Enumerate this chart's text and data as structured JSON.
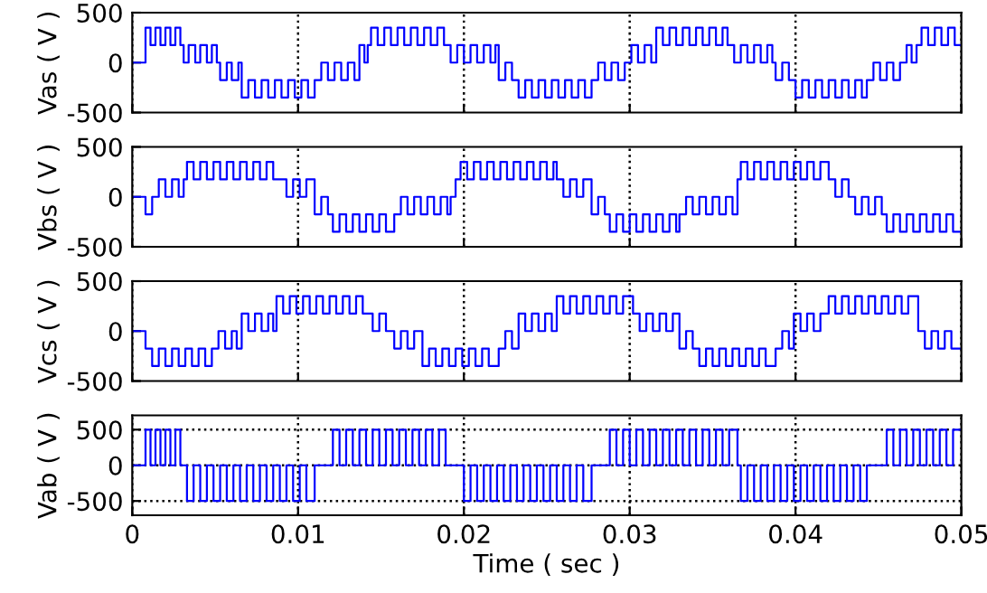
{
  "chart_data": [
    {
      "type": "step",
      "ylabel": "Vas ( V )",
      "xlim": [
        0,
        0.05
      ],
      "xticks": [
        0,
        0.01,
        0.02,
        0.03,
        0.04,
        0.05
      ],
      "ylim": [
        -500,
        500
      ],
      "yticks": [
        -500,
        0,
        500
      ],
      "grid": "x",
      "tick_labels": "y",
      "series": [
        {
          "color": "#0000ff",
          "x": [
            0,
            0.0008,
            0.0011,
            0.0014,
            0.0017,
            0.002,
            0.0023,
            0.0026,
            0.0029,
            0.0031,
            0.0034,
            0.0038,
            0.0041,
            0.0045,
            0.0048,
            0.0051,
            0.0053,
            0.0057,
            0.006,
            0.0064,
            0.0066,
            0.007,
            0.0074,
            0.0078,
            0.0082,
            0.0086,
            0.009,
            0.0094,
            0.0098,
            0.0102,
            0.0106,
            0.011,
            0.0114,
            0.0118,
            0.0122,
            0.0126,
            0.013,
            0.0134,
            0.0137,
            0.014,
            0.0142,
            0.0144,
            0.0148,
            0.0152,
            0.0156,
            0.016,
            0.0164,
            0.0168,
            0.0172,
            0.0176,
            0.018,
            0.0184,
            0.0188,
            0.0192,
            0.0196,
            0.02,
            0.0204,
            0.0208,
            0.0212,
            0.0216,
            0.0219,
            0.0221,
            0.0225,
            0.0229,
            0.0233,
            0.0237,
            0.0241,
            0.0245,
            0.0249,
            0.0253,
            0.0257,
            0.0261,
            0.0265,
            0.0269,
            0.0273,
            0.0277,
            0.0281,
            0.0285,
            0.0289,
            0.0293,
            0.0297,
            0.0301,
            0.0305,
            0.0309,
            0.0313,
            0.0316,
            0.032,
            0.0324,
            0.0328,
            0.0332,
            0.0336,
            0.034,
            0.0344,
            0.0348,
            0.0352,
            0.0356,
            0.0359,
            0.0363,
            0.0367,
            0.0371,
            0.0375,
            0.0379,
            0.0383,
            0.0386,
            0.0388,
            0.0392,
            0.0396,
            0.04,
            0.0404,
            0.0408,
            0.0412,
            0.0416,
            0.042,
            0.0424,
            0.0428,
            0.0432,
            0.0436,
            0.044,
            0.0443,
            0.0447,
            0.0451,
            0.0455,
            0.0459,
            0.0463,
            0.0467,
            0.047,
            0.0473,
            0.0476,
            0.048,
            0.0484,
            0.0488,
            0.0492,
            0.0496,
            0.05
          ],
          "values": [
            0,
            350,
            175,
            350,
            175,
            350,
            175,
            350,
            175,
            0,
            175,
            0,
            175,
            0,
            175,
            0,
            -175,
            0,
            -175,
            0,
            -350,
            -175,
            -350,
            -175,
            -350,
            -175,
            -350,
            -175,
            -350,
            -175,
            -350,
            -175,
            0,
            -175,
            0,
            -175,
            0,
            -175,
            175,
            0,
            175,
            350,
            175,
            350,
            175,
            350,
            175,
            350,
            175,
            350,
            175,
            350,
            175,
            0,
            175,
            0,
            175,
            0,
            175,
            0,
            175,
            -175,
            0,
            -175,
            -350,
            -175,
            -350,
            -175,
            -350,
            -175,
            -350,
            -175,
            -350,
            -175,
            -350,
            -175,
            0,
            -175,
            0,
            -175,
            0,
            175,
            0,
            175,
            0,
            350,
            175,
            350,
            175,
            350,
            175,
            350,
            175,
            350,
            175,
            350,
            175,
            0,
            175,
            0,
            175,
            0,
            175,
            0,
            -175,
            0,
            -175,
            -350,
            -175,
            -350,
            -175,
            -350,
            -175,
            -350,
            -175,
            -350,
            -175,
            -350,
            -175,
            0,
            -175,
            0,
            -175,
            0,
            175,
            0,
            175,
            350,
            175,
            350,
            175,
            350,
            175,
            175
          ]
        }
      ]
    },
    {
      "type": "step",
      "ylabel": "Vbs ( V )",
      "xlim": [
        0,
        0.05
      ],
      "xticks": [
        0,
        0.01,
        0.02,
        0.03,
        0.04,
        0.05
      ],
      "ylim": [
        -500,
        500
      ],
      "yticks": [
        -500,
        0,
        500
      ],
      "grid": "x",
      "tick_labels": "y",
      "series": [
        {
          "color": "#0000ff",
          "x": [
            0,
            0.0008,
            0.0012,
            0.0016,
            0.002,
            0.0024,
            0.0028,
            0.0031,
            0.0033,
            0.0037,
            0.0041,
            0.0045,
            0.0049,
            0.0053,
            0.0057,
            0.0061,
            0.0065,
            0.0069,
            0.0073,
            0.0077,
            0.0081,
            0.0085,
            0.0089,
            0.0093,
            0.0097,
            0.0101,
            0.0105,
            0.011,
            0.0114,
            0.0118,
            0.0121,
            0.0125,
            0.0129,
            0.0133,
            0.0137,
            0.0141,
            0.0145,
            0.0149,
            0.0153,
            0.0158,
            0.0162,
            0.0166,
            0.017,
            0.0174,
            0.0178,
            0.0182,
            0.0186,
            0.019,
            0.0192,
            0.0195,
            0.0198,
            0.0202,
            0.0206,
            0.021,
            0.0214,
            0.0218,
            0.0222,
            0.0226,
            0.023,
            0.0234,
            0.0238,
            0.0242,
            0.0246,
            0.025,
            0.0254,
            0.0256,
            0.026,
            0.0264,
            0.0268,
            0.0272,
            0.0277,
            0.0281,
            0.0285,
            0.0288,
            0.0292,
            0.0296,
            0.03,
            0.0304,
            0.0308,
            0.0312,
            0.0316,
            0.032,
            0.0324,
            0.0328,
            0.033,
            0.0334,
            0.0338,
            0.0342,
            0.0346,
            0.035,
            0.0354,
            0.0358,
            0.0362,
            0.0365,
            0.0367,
            0.0371,
            0.0375,
            0.0379,
            0.0383,
            0.0387,
            0.0391,
            0.0395,
            0.0399,
            0.0403,
            0.0407,
            0.0411,
            0.0415,
            0.042,
            0.0424,
            0.0428,
            0.0432,
            0.0436,
            0.044,
            0.0444,
            0.0448,
            0.0452,
            0.0455,
            0.0459,
            0.0463,
            0.0467,
            0.0471,
            0.0475,
            0.0479,
            0.0483,
            0.0487,
            0.0491,
            0.0495,
            0.05
          ],
          "values": [
            0,
            -175,
            0,
            175,
            0,
            175,
            0,
            175,
            350,
            175,
            350,
            175,
            350,
            175,
            350,
            175,
            350,
            175,
            350,
            175,
            350,
            175,
            175,
            0,
            175,
            0,
            175,
            -175,
            0,
            -175,
            -350,
            -175,
            -350,
            -175,
            -350,
            -175,
            -350,
            -175,
            -350,
            -175,
            0,
            -175,
            0,
            -175,
            0,
            -175,
            0,
            -175,
            0,
            175,
            350,
            175,
            350,
            175,
            350,
            175,
            350,
            175,
            350,
            175,
            350,
            175,
            350,
            175,
            350,
            175,
            0,
            175,
            0,
            175,
            -175,
            0,
            -175,
            -350,
            -175,
            -350,
            -175,
            -350,
            -175,
            -350,
            -175,
            -350,
            -175,
            -350,
            -175,
            0,
            -175,
            0,
            -175,
            0,
            -175,
            0,
            -175,
            175,
            350,
            175,
            350,
            175,
            350,
            175,
            350,
            175,
            350,
            175,
            350,
            175,
            350,
            175,
            0,
            175,
            0,
            -175,
            0,
            -175,
            0,
            -175,
            -350,
            -175,
            -350,
            -175,
            -350,
            -175,
            -350,
            -175,
            -350,
            -175,
            -350,
            -350
          ]
        }
      ]
    },
    {
      "type": "step",
      "ylabel": "Vcs ( V )",
      "xlim": [
        0,
        0.05
      ],
      "xticks": [
        0,
        0.01,
        0.02,
        0.03,
        0.04,
        0.05
      ],
      "ylim": [
        -500,
        500
      ],
      "yticks": [
        -500,
        0,
        500
      ],
      "grid": "x",
      "tick_labels": "y",
      "series": [
        {
          "color": "#0000ff",
          "x": [
            0,
            0.0008,
            0.0012,
            0.0016,
            0.002,
            0.0024,
            0.0028,
            0.0032,
            0.0036,
            0.004,
            0.0044,
            0.0048,
            0.0052,
            0.0056,
            0.006,
            0.0063,
            0.0066,
            0.007,
            0.0074,
            0.0078,
            0.0082,
            0.0085,
            0.0087,
            0.0091,
            0.0095,
            0.0099,
            0.0103,
            0.0107,
            0.0111,
            0.0115,
            0.0119,
            0.0123,
            0.0127,
            0.0131,
            0.0135,
            0.0139,
            0.0141,
            0.0145,
            0.0149,
            0.0153,
            0.0158,
            0.0162,
            0.0166,
            0.017,
            0.0175,
            0.0179,
            0.0183,
            0.0187,
            0.0191,
            0.0195,
            0.0199,
            0.0203,
            0.0207,
            0.0211,
            0.0215,
            0.0221,
            0.0225,
            0.0229,
            0.0233,
            0.0237,
            0.0241,
            0.0245,
            0.0249,
            0.0253,
            0.0256,
            0.026,
            0.0264,
            0.0268,
            0.0272,
            0.0276,
            0.028,
            0.0284,
            0.0288,
            0.0292,
            0.0296,
            0.0302,
            0.0306,
            0.031,
            0.0314,
            0.0318,
            0.0322,
            0.0326,
            0.033,
            0.0334,
            0.0338,
            0.0342,
            0.0346,
            0.035,
            0.0354,
            0.0358,
            0.0362,
            0.0366,
            0.037,
            0.0374,
            0.0378,
            0.0382,
            0.0388,
            0.0392,
            0.0396,
            0.0399,
            0.0403,
            0.0407,
            0.0411,
            0.0415,
            0.042,
            0.0424,
            0.0428,
            0.0432,
            0.0436,
            0.044,
            0.0444,
            0.0448,
            0.0452,
            0.0456,
            0.046,
            0.0464,
            0.0468,
            0.0474,
            0.0478,
            0.0482,
            0.0486,
            0.049,
            0.0494,
            0.05
          ],
          "values": [
            0,
            -175,
            -350,
            -175,
            -350,
            -175,
            -350,
            -175,
            -350,
            -175,
            -350,
            -175,
            0,
            -175,
            0,
            -175,
            175,
            0,
            175,
            0,
            175,
            0,
            350,
            175,
            350,
            175,
            350,
            175,
            350,
            175,
            350,
            175,
            350,
            175,
            350,
            175,
            175,
            0,
            175,
            0,
            -175,
            0,
            -175,
            0,
            -350,
            -175,
            -350,
            -175,
            -350,
            -175,
            -350,
            -175,
            -350,
            -175,
            -350,
            -175,
            0,
            -175,
            175,
            0,
            175,
            0,
            175,
            0,
            350,
            175,
            350,
            175,
            350,
            175,
            350,
            175,
            350,
            175,
            350,
            175,
            0,
            175,
            0,
            175,
            0,
            175,
            -175,
            0,
            -175,
            -350,
            -175,
            -350,
            -175,
            -350,
            -175,
            -350,
            -175,
            -350,
            -175,
            -350,
            -175,
            0,
            -175,
            175,
            0,
            175,
            0,
            175,
            350,
            175,
            350,
            175,
            350,
            175,
            350,
            175,
            350,
            175,
            350,
            175,
            350,
            0,
            -175,
            0,
            -175,
            0,
            -175,
            -175
          ]
        }
      ]
    },
    {
      "type": "step",
      "ylabel": "Vab ( V )",
      "xlabel": "Time ( sec )",
      "xlim": [
        0,
        0.05
      ],
      "xticks": [
        0,
        0.01,
        0.02,
        0.03,
        0.04,
        0.05
      ],
      "ylim": [
        -700,
        700
      ],
      "yticks": [
        -500,
        0,
        500
      ],
      "grid": true,
      "series": [
        {
          "color": "#0000ff",
          "x": [
            0,
            0.0008,
            0.0011,
            0.0014,
            0.0017,
            0.002,
            0.0023,
            0.0026,
            0.0029,
            0.0033,
            0.0037,
            0.0041,
            0.0045,
            0.0049,
            0.0053,
            0.0057,
            0.0061,
            0.0065,
            0.0069,
            0.0073,
            0.0077,
            0.0081,
            0.0085,
            0.0089,
            0.0093,
            0.0097,
            0.0101,
            0.0105,
            0.011,
            0.0121,
            0.0125,
            0.0129,
            0.0133,
            0.0137,
            0.0141,
            0.0145,
            0.0149,
            0.0153,
            0.0157,
            0.0161,
            0.0165,
            0.0169,
            0.0173,
            0.0177,
            0.0181,
            0.0185,
            0.0189,
            0.02,
            0.0204,
            0.0208,
            0.0212,
            0.0216,
            0.022,
            0.0224,
            0.0228,
            0.0232,
            0.0236,
            0.024,
            0.0244,
            0.0248,
            0.0252,
            0.0256,
            0.026,
            0.0264,
            0.0268,
            0.0272,
            0.0277,
            0.0288,
            0.0292,
            0.0296,
            0.03,
            0.0304,
            0.0308,
            0.0312,
            0.0316,
            0.032,
            0.0324,
            0.0328,
            0.0332,
            0.0336,
            0.034,
            0.0344,
            0.0348,
            0.0352,
            0.0356,
            0.036,
            0.0365,
            0.0367,
            0.0371,
            0.0375,
            0.0379,
            0.0383,
            0.0387,
            0.0391,
            0.0395,
            0.0399,
            0.0403,
            0.0407,
            0.0411,
            0.0415,
            0.0419,
            0.0423,
            0.0427,
            0.0431,
            0.0435,
            0.0439,
            0.0443,
            0.0455,
            0.0459,
            0.0463,
            0.0467,
            0.0471,
            0.0475,
            0.0479,
            0.0483,
            0.0487,
            0.0491,
            0.0495,
            0.05
          ],
          "values": [
            0,
            500,
            0,
            500,
            0,
            500,
            0,
            500,
            0,
            -500,
            0,
            -500,
            0,
            -500,
            0,
            -500,
            0,
            -500,
            0,
            -500,
            0,
            -500,
            0,
            -500,
            0,
            -500,
            0,
            -500,
            0,
            500,
            0,
            500,
            0,
            500,
            0,
            500,
            0,
            500,
            0,
            500,
            0,
            500,
            0,
            500,
            0,
            500,
            0,
            -500,
            0,
            -500,
            0,
            -500,
            0,
            -500,
            0,
            -500,
            0,
            -500,
            0,
            -500,
            0,
            -500,
            0,
            -500,
            0,
            -500,
            0,
            500,
            0,
            500,
            0,
            500,
            0,
            500,
            0,
            500,
            0,
            500,
            0,
            500,
            0,
            500,
            0,
            500,
            0,
            500,
            0,
            -500,
            0,
            -500,
            0,
            -500,
            0,
            -500,
            0,
            -500,
            0,
            -500,
            0,
            -500,
            0,
            -500,
            0,
            -500,
            0,
            -500,
            0,
            500,
            0,
            500,
            0,
            500,
            0,
            500,
            0,
            500,
            0,
            500,
            500
          ]
        }
      ]
    }
  ]
}
